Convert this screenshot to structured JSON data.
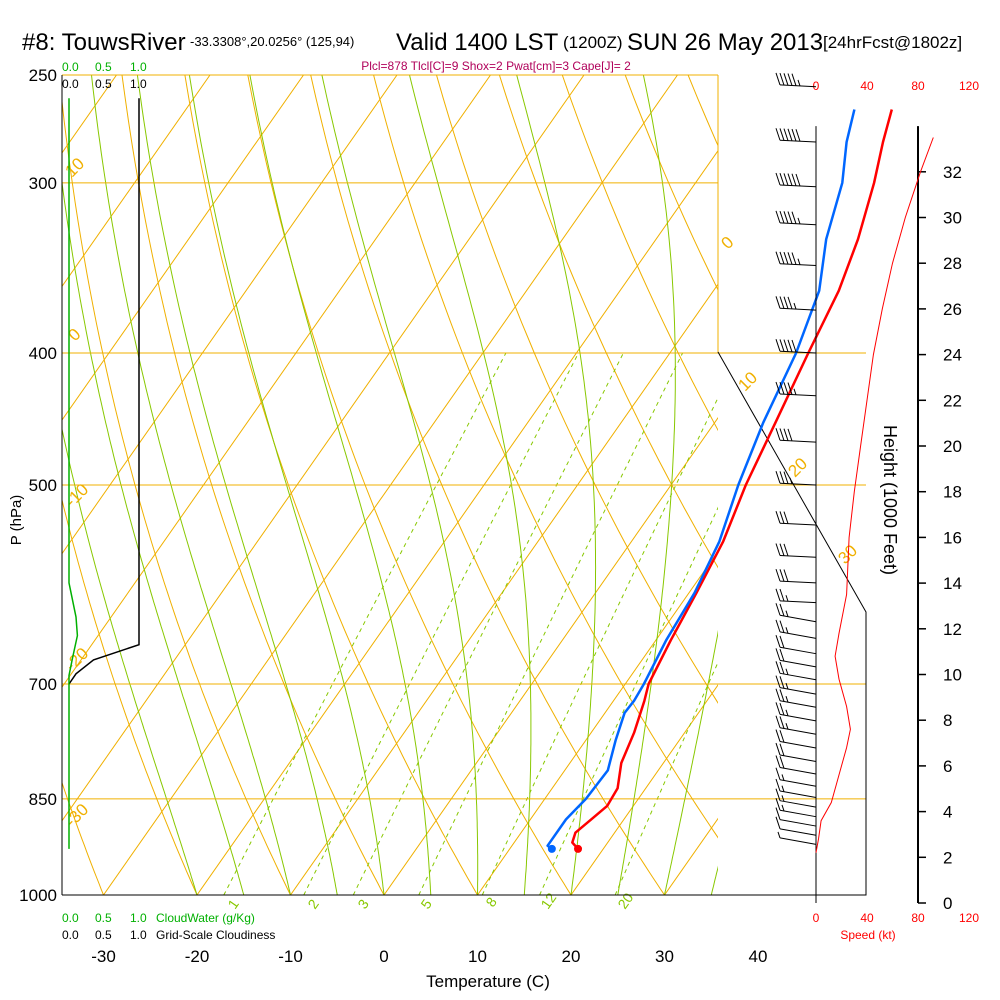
{
  "header": {
    "station": "#8: TouwsRiver",
    "coords": "-33.3308°,20.0256° (125,94)",
    "valid": "Valid 1400 LST",
    "utc": "(1200Z)",
    "date": "SUN 26 May 2013",
    "forecast": "[24hrFcst@1802z]"
  },
  "indices": "Plcl=878 Tlcl[C]=9 Shox=2 Pwat[cm]=3 Cape[J]= 2",
  "colors": {
    "isotherm": "#f0b000",
    "dry_adiabat": "#f0b000",
    "moist_adiabat": "#88c800",
    "mixing_ratio": "#88c800",
    "temperature": "#ff0000",
    "dewpoint": "#0066ff",
    "cloudwater": "#00b000",
    "cloudiness": "#000000",
    "wind_barb": "#000000",
    "speed": "#ff0000"
  },
  "cloud_scale": {
    "top_green": [
      "0.0",
      "0.5",
      "1.0"
    ],
    "top_black": [
      "0.0",
      "0.5",
      "1.0"
    ],
    "bottom_green": [
      "0.0",
      "0.5",
      "1.0"
    ],
    "bottom_black": [
      "0.0",
      "0.5",
      "1.0"
    ],
    "cloudwater_label": "CloudWater (g/Kg)",
    "cloudiness_label": "Grid-Scale Cloudiness"
  },
  "speed_scale": {
    "top": [
      "0",
      "40",
      "80",
      "120"
    ],
    "bottom": [
      "0",
      "40",
      "80",
      "120"
    ],
    "label": "Speed (kt)"
  },
  "chart_data": {
    "type": "skew-t",
    "xlabel": "Temperature (C)",
    "ylabel": "P (hPa)",
    "y2label": "Height (1000 Feet)",
    "x_ticks": [
      -30,
      -20,
      -10,
      0,
      10,
      20,
      30,
      40
    ],
    "p_ticks": [
      250,
      300,
      400,
      500,
      700,
      850,
      1000
    ],
    "height_ticks": [
      0,
      2,
      4,
      6,
      8,
      10,
      12,
      14,
      16,
      18,
      20,
      22,
      24,
      26,
      28,
      30,
      32
    ],
    "dry_adiabat_labels": [
      "10",
      "0",
      "-10",
      "-20",
      "-30",
      "0",
      "10",
      "20",
      "30"
    ],
    "mixing_ratio_labels": [
      "1",
      "2",
      "3",
      "5",
      "8",
      "12",
      "20"
    ],
    "temperature": [
      {
        "p": 925,
        "t": 17.3
      },
      {
        "p": 915,
        "t": 16.2
      },
      {
        "p": 900,
        "t": 15.8
      },
      {
        "p": 880,
        "t": 16.5
      },
      {
        "p": 860,
        "t": 17.2
      },
      {
        "p": 835,
        "t": 17.0
      },
      {
        "p": 800,
        "t": 15.5
      },
      {
        "p": 760,
        "t": 14.6
      },
      {
        "p": 720,
        "t": 13.3
      },
      {
        "p": 700,
        "t": 12.5
      },
      {
        "p": 650,
        "t": 11.6
      },
      {
        "p": 600,
        "t": 10.8
      },
      {
        "p": 550,
        "t": 9.8
      },
      {
        "p": 500,
        "t": 8.0
      },
      {
        "p": 450,
        "t": 6.5
      },
      {
        "p": 400,
        "t": 4.8
      },
      {
        "p": 360,
        "t": 3.4
      },
      {
        "p": 330,
        "t": 1.6
      },
      {
        "p": 300,
        "t": -0.9
      },
      {
        "p": 280,
        "t": -3.0
      },
      {
        "p": 265,
        "t": -4.5
      }
    ],
    "dewpoint": [
      {
        "p": 925,
        "t": 14.5
      },
      {
        "p": 920,
        "t": 13.8
      },
      {
        "p": 880,
        "t": 13.8
      },
      {
        "p": 850,
        "t": 14.4
      },
      {
        "p": 810,
        "t": 14.6
      },
      {
        "p": 770,
        "t": 13.2
      },
      {
        "p": 735,
        "t": 12.1
      },
      {
        "p": 720,
        "t": 12.2
      },
      {
        "p": 700,
        "t": 12.0
      },
      {
        "p": 650,
        "t": 11.1
      },
      {
        "p": 600,
        "t": 10.6
      },
      {
        "p": 550,
        "t": 9.4
      },
      {
        "p": 500,
        "t": 7.2
      },
      {
        "p": 450,
        "t": 5.2
      },
      {
        "p": 400,
        "t": 3.5
      },
      {
        "p": 360,
        "t": 1.3
      },
      {
        "p": 330,
        "t": -1.8
      },
      {
        "p": 300,
        "t": -4.3
      },
      {
        "p": 280,
        "t": -6.9
      },
      {
        "p": 265,
        "t": -8.5
      }
    ],
    "cloudiness": [
      {
        "p": 260,
        "v": 1.0
      },
      {
        "p": 655,
        "v": 1.0
      },
      {
        "p": 672,
        "v": 0.35
      },
      {
        "p": 688,
        "v": 0.1
      },
      {
        "p": 700,
        "v": 0.0
      }
    ],
    "cloudwater": [
      {
        "p": 260,
        "v": 0.0
      },
      {
        "p": 590,
        "v": 0.0
      },
      {
        "p": 625,
        "v": 0.1
      },
      {
        "p": 645,
        "v": 0.12
      },
      {
        "p": 670,
        "v": 0.05
      },
      {
        "p": 690,
        "v": 0.0
      },
      {
        "p": 925,
        "v": 0.0
      }
    ],
    "wind_speed_profile": [
      {
        "h": 2.2,
        "s": 0
      },
      {
        "h": 2.8,
        "s": 2
      },
      {
        "h": 3.6,
        "s": 4
      },
      {
        "h": 4.4,
        "s": 12
      },
      {
        "h": 5.2,
        "s": 16
      },
      {
        "h": 6.0,
        "s": 20
      },
      {
        "h": 6.8,
        "s": 24
      },
      {
        "h": 7.6,
        "s": 27
      },
      {
        "h": 8.6,
        "s": 24
      },
      {
        "h": 9.8,
        "s": 18
      },
      {
        "h": 10.8,
        "s": 15
      },
      {
        "h": 11.8,
        "s": 18
      },
      {
        "h": 13.5,
        "s": 24
      },
      {
        "h": 16,
        "s": 26
      },
      {
        "h": 18,
        "s": 30
      },
      {
        "h": 20,
        "s": 35
      },
      {
        "h": 22,
        "s": 40
      },
      {
        "h": 24,
        "s": 45
      },
      {
        "h": 26,
        "s": 52
      },
      {
        "h": 28,
        "s": 60
      },
      {
        "h": 30,
        "s": 70
      },
      {
        "h": 32,
        "s": 82
      },
      {
        "h": 33.5,
        "s": 92
      }
    ],
    "wind_barbs": [
      {
        "p": 255,
        "spd": 55
      },
      {
        "p": 280,
        "spd": 60
      },
      {
        "p": 302,
        "spd": 60
      },
      {
        "p": 322,
        "spd": 55
      },
      {
        "p": 345,
        "spd": 55
      },
      {
        "p": 372,
        "spd": 45
      },
      {
        "p": 400,
        "spd": 50
      },
      {
        "p": 430,
        "spd": 45
      },
      {
        "p": 465,
        "spd": 40
      },
      {
        "p": 500,
        "spd": 35
      },
      {
        "p": 535,
        "spd": 30
      },
      {
        "p": 565,
        "spd": 30
      },
      {
        "p": 590,
        "spd": 30
      },
      {
        "p": 610,
        "spd": 25
      },
      {
        "p": 630,
        "spd": 25
      },
      {
        "p": 648,
        "spd": 25
      },
      {
        "p": 665,
        "spd": 20
      },
      {
        "p": 680,
        "spd": 20
      },
      {
        "p": 695,
        "spd": 25
      },
      {
        "p": 712,
        "spd": 25
      },
      {
        "p": 728,
        "spd": 25
      },
      {
        "p": 745,
        "spd": 25
      },
      {
        "p": 762,
        "spd": 25
      },
      {
        "p": 780,
        "spd": 20
      },
      {
        "p": 798,
        "spd": 20
      },
      {
        "p": 815,
        "spd": 20
      },
      {
        "p": 832,
        "spd": 15
      },
      {
        "p": 848,
        "spd": 15
      },
      {
        "p": 862,
        "spd": 15
      },
      {
        "p": 876,
        "spd": 15
      },
      {
        "p": 890,
        "spd": 10
      },
      {
        "p": 904,
        "spd": 10
      },
      {
        "p": 918,
        "spd": 5
      }
    ]
  }
}
